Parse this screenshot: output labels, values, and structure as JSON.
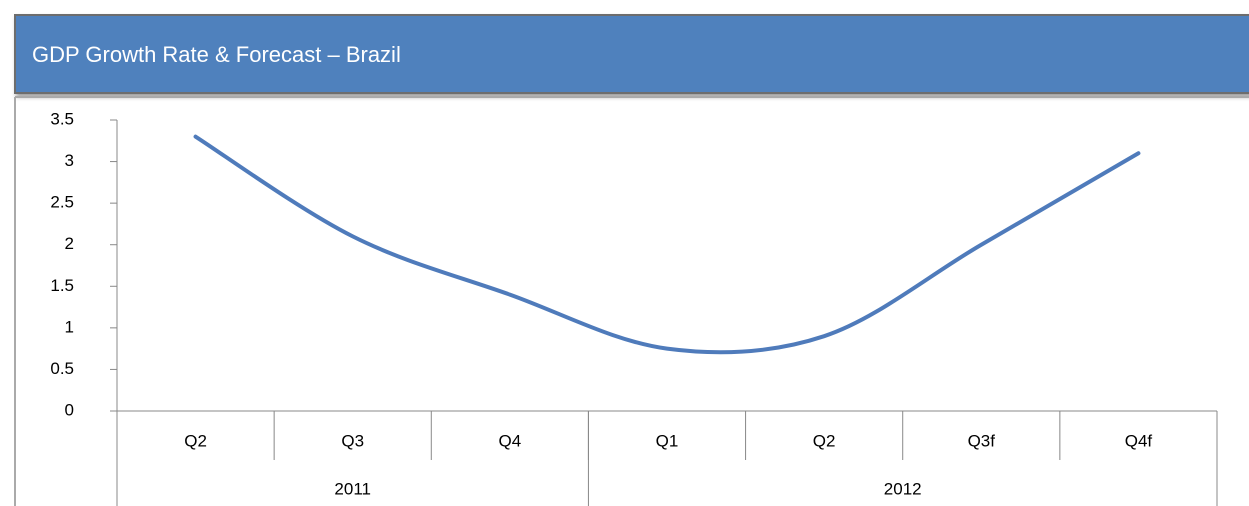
{
  "chart_data": {
    "type": "line",
    "title": "GDP Growth Rate & Forecast – Brazil",
    "categories": [
      "Q2",
      "Q3",
      "Q4",
      "Q1",
      "Q2",
      "Q3f",
      "Q4f"
    ],
    "x_groups": [
      {
        "label": "2011",
        "count": 3
      },
      {
        "label": "2012",
        "count": 4
      }
    ],
    "series": [
      {
        "name": "GDP Growth Rate",
        "color": "#4f7bbb",
        "values": [
          3.3,
          2.1,
          1.4,
          0.75,
          0.9,
          2.0,
          3.1
        ]
      }
    ],
    "ylim": [
      0,
      3.5
    ],
    "yticks": [
      0,
      0.5,
      1,
      1.5,
      2,
      2.5,
      3,
      3.5
    ]
  }
}
